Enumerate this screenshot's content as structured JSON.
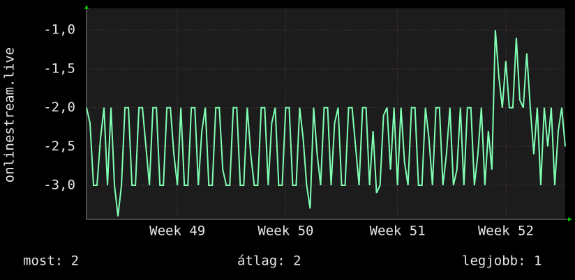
{
  "chart_data": {
    "type": "line",
    "y_label": "onlinestream.live",
    "color": "#80ffb4",
    "grid": true,
    "ylim": [
      -3.44,
      -0.72
    ],
    "yticks": [
      {
        "value": -1.0,
        "label": "-1,0"
      },
      {
        "value": -1.5,
        "label": "-1,5"
      },
      {
        "value": -2.0,
        "label": "-2,0"
      },
      {
        "value": -2.5,
        "label": "-2,5"
      },
      {
        "value": -3.0,
        "label": "-3,0"
      }
    ],
    "xlim": [
      0,
      137
    ],
    "xticks": [
      {
        "value": 26,
        "label": "Week 49"
      },
      {
        "value": 57,
        "label": "Week 50"
      },
      {
        "value": 89,
        "label": "Week 51"
      },
      {
        "value": 120,
        "label": "Week 52"
      }
    ],
    "values": [
      -2,
      -2.2,
      -3,
      -3,
      -2.4,
      -2,
      -3,
      -2,
      -3,
      -3.4,
      -3,
      -2,
      -2,
      -3,
      -3,
      -2,
      -2,
      -2.5,
      -3,
      -2,
      -2,
      -3,
      -3,
      -2,
      -2,
      -2.6,
      -3,
      -2,
      -3,
      -3,
      -2,
      -2,
      -3,
      -2.3,
      -2,
      -3,
      -3,
      -2,
      -2,
      -2.8,
      -3,
      -3,
      -2,
      -2,
      -3,
      -3,
      -2,
      -2.6,
      -3,
      -3,
      -2,
      -2,
      -3,
      -2.2,
      -2,
      -3,
      -3,
      -2,
      -2,
      -3,
      -3,
      -2,
      -2.4,
      -3,
      -3.3,
      -2,
      -2.6,
      -3,
      -2,
      -2,
      -3,
      -2.2,
      -2,
      -3,
      -3,
      -2,
      -2,
      -2.5,
      -3,
      -2,
      -2,
      -3,
      -2.3,
      -3.1,
      -3,
      -2.1,
      -2,
      -2.8,
      -2,
      -3,
      -2,
      -2.7,
      -3,
      -2,
      -2,
      -3,
      -3,
      -2,
      -2.4,
      -3,
      -2,
      -2,
      -3,
      -2.6,
      -2,
      -3,
      -2.8,
      -2,
      -3,
      -2,
      -2,
      -3,
      -2.6,
      -2,
      -3,
      -2.3,
      -2.8,
      -1.0,
      -1.6,
      -2,
      -1.4,
      -2,
      -2,
      -1.1,
      -1.9,
      -2,
      -1.3,
      -2,
      -2.6,
      -2,
      -3,
      -2,
      -2.5,
      -2,
      -3,
      -2.3,
      -2,
      -2.5
    ],
    "legend_texts": [
      "most: 2",
      "átlag: 2",
      "legjobb: 1"
    ]
  }
}
